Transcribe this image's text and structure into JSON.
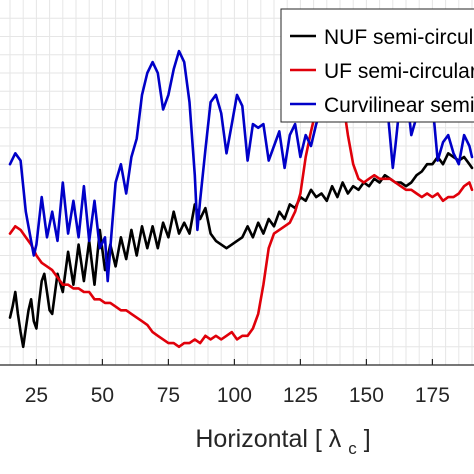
{
  "chart_data": {
    "type": "line",
    "xlabel": "Horizontal",
    "xlabel_unit_symbol": "λ",
    "xlabel_unit_subscript": "c",
    "xlim": [
      15,
      190
    ],
    "ylim": [
      0,
      1
    ],
    "xticks": [
      25,
      50,
      75,
      100,
      125,
      150,
      175
    ],
    "xtick_labels": [
      "25",
      "50",
      "75",
      "100",
      "125",
      "150",
      "175"
    ],
    "grid": true,
    "legend_position": "top-right",
    "series": [
      {
        "name": "NUF semi-circular",
        "color": "#000000",
        "x": [
          15,
          16,
          17,
          18,
          19,
          20,
          21,
          22,
          23,
          24,
          25,
          26,
          27,
          28,
          29,
          30,
          31,
          33,
          35,
          37,
          39,
          41,
          43,
          45,
          47,
          49,
          51,
          53,
          55,
          57,
          59,
          61,
          63,
          65,
          67,
          69,
          71,
          73,
          75,
          77,
          79,
          81,
          83,
          85,
          87,
          89,
          91,
          93,
          95,
          97,
          99,
          101,
          103,
          105,
          107,
          109,
          111,
          113,
          115,
          117,
          119,
          121,
          123,
          125,
          127,
          129,
          131,
          133,
          135,
          137,
          139,
          141,
          143,
          145,
          147,
          149,
          151,
          153,
          155,
          157,
          159,
          161,
          163,
          165,
          167,
          169,
          171,
          173,
          175,
          177,
          179,
          181,
          183,
          185,
          187,
          189,
          190
        ],
        "y": [
          0.13,
          0.16,
          0.2,
          0.14,
          0.09,
          0.05,
          0.1,
          0.15,
          0.18,
          0.12,
          0.1,
          0.17,
          0.23,
          0.25,
          0.2,
          0.15,
          0.14,
          0.25,
          0.2,
          0.31,
          0.22,
          0.33,
          0.23,
          0.34,
          0.22,
          0.37,
          0.26,
          0.33,
          0.27,
          0.35,
          0.29,
          0.37,
          0.3,
          0.38,
          0.32,
          0.38,
          0.32,
          0.39,
          0.35,
          0.42,
          0.36,
          0.39,
          0.36,
          0.44,
          0.4,
          0.43,
          0.36,
          0.34,
          0.33,
          0.32,
          0.33,
          0.34,
          0.35,
          0.38,
          0.35,
          0.39,
          0.36,
          0.4,
          0.38,
          0.42,
          0.4,
          0.44,
          0.43,
          0.46,
          0.45,
          0.48,
          0.46,
          0.47,
          0.45,
          0.49,
          0.46,
          0.5,
          0.47,
          0.49,
          0.48,
          0.5,
          0.49,
          0.51,
          0.5,
          0.52,
          0.51,
          0.5,
          0.5,
          0.49,
          0.5,
          0.52,
          0.53,
          0.55,
          0.55,
          0.57,
          0.55,
          0.58,
          0.57,
          0.56,
          0.57,
          0.55,
          0.54
        ]
      },
      {
        "name": "UF semi-circular",
        "color": "#e0000a",
        "x": [
          15,
          17,
          19,
          21,
          23,
          25,
          27,
          29,
          31,
          33,
          35,
          37,
          39,
          41,
          43,
          45,
          47,
          49,
          51,
          53,
          55,
          57,
          59,
          61,
          63,
          65,
          67,
          69,
          71,
          73,
          75,
          77,
          79,
          81,
          83,
          85,
          87,
          89,
          91,
          93,
          95,
          97,
          99,
          101,
          103,
          105,
          107,
          109,
          111,
          113,
          115,
          117,
          119,
          121,
          123,
          125,
          127,
          129,
          131,
          133,
          135,
          137,
          139,
          141,
          143,
          145,
          147,
          149,
          151,
          153,
          155,
          157,
          159,
          161,
          163,
          165,
          167,
          169,
          171,
          173,
          175,
          177,
          179,
          181,
          183,
          185,
          187,
          189,
          190
        ],
        "y": [
          0.36,
          0.38,
          0.37,
          0.35,
          0.33,
          0.3,
          0.28,
          0.27,
          0.26,
          0.24,
          0.22,
          0.22,
          0.21,
          0.21,
          0.2,
          0.2,
          0.18,
          0.18,
          0.17,
          0.17,
          0.16,
          0.15,
          0.15,
          0.14,
          0.13,
          0.12,
          0.11,
          0.09,
          0.08,
          0.07,
          0.06,
          0.06,
          0.05,
          0.06,
          0.06,
          0.07,
          0.06,
          0.08,
          0.07,
          0.08,
          0.07,
          0.08,
          0.09,
          0.07,
          0.08,
          0.08,
          0.1,
          0.14,
          0.22,
          0.32,
          0.36,
          0.37,
          0.38,
          0.39,
          0.42,
          0.47,
          0.57,
          0.64,
          0.7,
          0.74,
          0.78,
          0.8,
          0.78,
          0.73,
          0.63,
          0.55,
          0.51,
          0.5,
          0.51,
          0.52,
          0.51,
          0.51,
          0.51,
          0.5,
          0.49,
          0.48,
          0.48,
          0.47,
          0.46,
          0.47,
          0.46,
          0.47,
          0.45,
          0.46,
          0.46,
          0.47,
          0.49,
          0.5,
          0.48
        ]
      },
      {
        "name": "Curvilinear semi-circular",
        "color": "#0000c8",
        "x": [
          15,
          17,
          19,
          21,
          23,
          24,
          25,
          27,
          29,
          31,
          33,
          35,
          37,
          39,
          41,
          43,
          45,
          47,
          49,
          51,
          52,
          53,
          55,
          57,
          59,
          61,
          63,
          65,
          67,
          69,
          71,
          73,
          75,
          77,
          79,
          81,
          83,
          85,
          86,
          87,
          89,
          91,
          93,
          95,
          97,
          99,
          101,
          103,
          105,
          107,
          109,
          111,
          113,
          115,
          117,
          119,
          121,
          123,
          125,
          127,
          129,
          131,
          133,
          135,
          137,
          139,
          141,
          143,
          145,
          147,
          149,
          151,
          153,
          155,
          157,
          159,
          160,
          161,
          163,
          165,
          167,
          169,
          171,
          173,
          175,
          177,
          179,
          181,
          183,
          185,
          187,
          189,
          190
        ],
        "y": [
          0.55,
          0.58,
          0.56,
          0.42,
          0.34,
          0.3,
          0.33,
          0.46,
          0.35,
          0.42,
          0.34,
          0.5,
          0.36,
          0.45,
          0.35,
          0.49,
          0.34,
          0.45,
          0.32,
          0.35,
          0.23,
          0.32,
          0.5,
          0.55,
          0.47,
          0.57,
          0.62,
          0.74,
          0.8,
          0.83,
          0.8,
          0.7,
          0.74,
          0.81,
          0.86,
          0.83,
          0.72,
          0.52,
          0.37,
          0.45,
          0.59,
          0.72,
          0.74,
          0.69,
          0.58,
          0.66,
          0.74,
          0.71,
          0.56,
          0.66,
          0.65,
          0.66,
          0.56,
          0.6,
          0.64,
          0.54,
          0.63,
          0.66,
          0.57,
          0.63,
          0.6,
          0.66,
          0.7,
          0.76,
          0.76,
          0.68,
          0.77,
          0.81,
          0.8,
          0.75,
          0.79,
          0.76,
          0.67,
          0.77,
          0.78,
          0.62,
          0.54,
          0.6,
          0.74,
          0.76,
          0.63,
          0.68,
          0.73,
          0.77,
          0.72,
          0.56,
          0.61,
          0.63,
          0.58,
          0.55,
          0.63,
          0.6,
          0.57
        ]
      }
    ]
  }
}
